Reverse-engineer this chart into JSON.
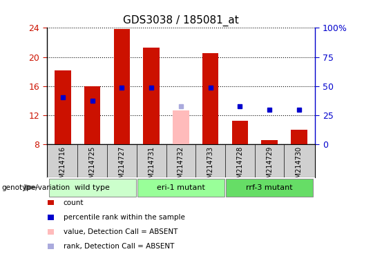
{
  "title": "GDS3038 / 185081_at",
  "samples": [
    "GSM214716",
    "GSM214725",
    "GSM214727",
    "GSM214731",
    "GSM214732",
    "GSM214733",
    "GSM214728",
    "GSM214729",
    "GSM214730"
  ],
  "counts": [
    18.2,
    16.0,
    23.8,
    21.3,
    null,
    20.5,
    11.2,
    8.6,
    10.0
  ],
  "counts_absent": [
    null,
    null,
    null,
    null,
    12.7,
    null,
    null,
    null,
    null
  ],
  "percentile_ranks": [
    14.5,
    14.0,
    15.8,
    15.8,
    null,
    15.8,
    13.2,
    12.8,
    12.8
  ],
  "percentile_ranks_absent": [
    null,
    null,
    null,
    null,
    13.2,
    null,
    null,
    null,
    null
  ],
  "groups": [
    {
      "label": "wild type",
      "indices": [
        0,
        1,
        2
      ],
      "color": "#ccffcc"
    },
    {
      "label": "eri-1 mutant",
      "indices": [
        3,
        4,
        5
      ],
      "color": "#99ff99"
    },
    {
      "label": "rrf-3 mutant",
      "indices": [
        6,
        7,
        8
      ],
      "color": "#66dd66"
    }
  ],
  "ylim_left": [
    8,
    24
  ],
  "yticks_left": [
    8,
    12,
    16,
    20,
    24
  ],
  "ylim_right": [
    0,
    100
  ],
  "yticks_right": [
    0,
    25,
    50,
    75,
    100
  ],
  "ytick_labels_right": [
    "0",
    "25",
    "50",
    "75",
    "100%"
  ],
  "bar_color": "#cc1100",
  "bar_color_absent": "#ffbbbb",
  "rank_color": "#0000cc",
  "rank_color_absent": "#aaaadd",
  "bg_color": "#d0d0d0",
  "plot_bg": "#ffffff",
  "grid_color": "#000000",
  "left_tick_color": "#cc1100",
  "right_tick_color": "#0000cc",
  "bar_width": 0.55,
  "genotype_label": "genotype/variation",
  "legend_items": [
    {
      "color": "#cc1100",
      "label": "count"
    },
    {
      "color": "#0000cc",
      "label": "percentile rank within the sample"
    },
    {
      "color": "#ffbbbb",
      "label": "value, Detection Call = ABSENT"
    },
    {
      "color": "#aaaadd",
      "label": "rank, Detection Call = ABSENT"
    }
  ]
}
